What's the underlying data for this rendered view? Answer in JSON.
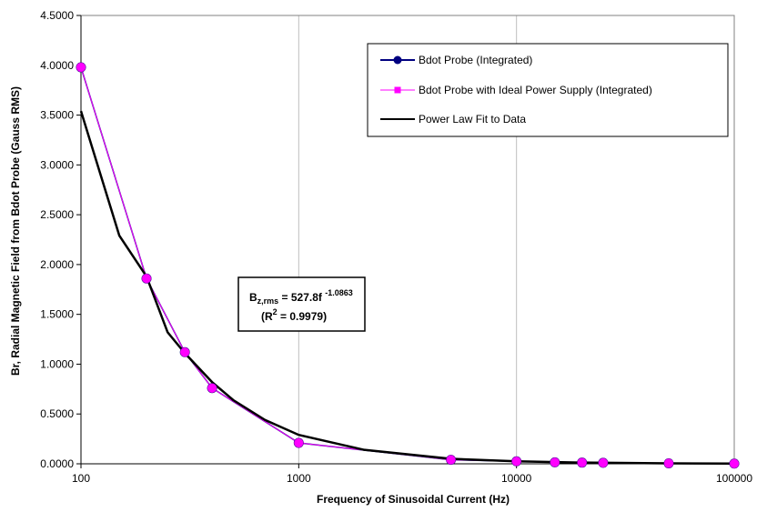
{
  "chart_data": {
    "type": "line",
    "xscale": "log",
    "xlim": [
      100,
      100000
    ],
    "ylim": [
      0,
      4.5
    ],
    "xlabel": "Frequency of Sinusoidal Current (Hz)",
    "ylabel": "Br, Radial Magnetic Field from Bdot Probe (Gauss RMS)",
    "grid": "vertical",
    "x_ticks": [
      100,
      1000,
      10000,
      100000
    ],
    "x_tick_labels": [
      "100",
      "1000",
      "10000",
      "100000"
    ],
    "y_ticks": [
      0,
      0.5,
      1.0,
      1.5,
      2.0,
      2.5,
      3.0,
      3.5,
      4.0,
      4.5
    ],
    "y_tick_labels": [
      "0.0000",
      "0.5000",
      "1.0000",
      "1.5000",
      "2.0000",
      "2.5000",
      "3.0000",
      "3.5000",
      "4.0000",
      "4.5000"
    ],
    "legend_position": "top-right",
    "series": [
      {
        "name": "Bdot Probe (Integrated)",
        "color": "#000080",
        "marker": "circle",
        "x": [
          100,
          200,
          300,
          400,
          1000,
          5000,
          10000,
          15000,
          20000,
          25000,
          50000,
          100000
        ],
        "y": [
          3.98,
          1.86,
          1.12,
          0.76,
          0.21,
          0.04,
          0.025,
          0.015,
          0.012,
          0.01,
          0.005,
          0.002
        ]
      },
      {
        "name": "Bdot Probe with Ideal Power Supply (Integrated)",
        "color": "#ff00ff",
        "marker": "square",
        "x": [
          100,
          200,
          300,
          400,
          1000,
          5000,
          10000,
          15000,
          20000,
          25000,
          50000,
          100000
        ],
        "y": [
          3.98,
          1.86,
          1.12,
          0.76,
          0.21,
          0.04,
          0.025,
          0.015,
          0.012,
          0.01,
          0.005,
          0.002
        ]
      },
      {
        "name": "Power Law Fit to Data",
        "color": "#000000",
        "marker": "none",
        "x": [
          100,
          150,
          200,
          250,
          300,
          400,
          500,
          700,
          1000,
          2000,
          5000,
          10000,
          20000,
          50000,
          100000
        ],
        "y": [
          3.54,
          2.29,
          1.88,
          1.32,
          1.11,
          0.82,
          0.64,
          0.44,
          0.29,
          0.14,
          0.05,
          0.025,
          0.012,
          0.005,
          0.002
        ]
      }
    ],
    "annotation": {
      "main": "B",
      "sub": "z,rms",
      "mid": " = 527.8f ",
      "sup": "-1.0863",
      "line2_pre": "(R",
      "line2_sup": "2",
      "line2_post": " = 0.9979)"
    }
  }
}
